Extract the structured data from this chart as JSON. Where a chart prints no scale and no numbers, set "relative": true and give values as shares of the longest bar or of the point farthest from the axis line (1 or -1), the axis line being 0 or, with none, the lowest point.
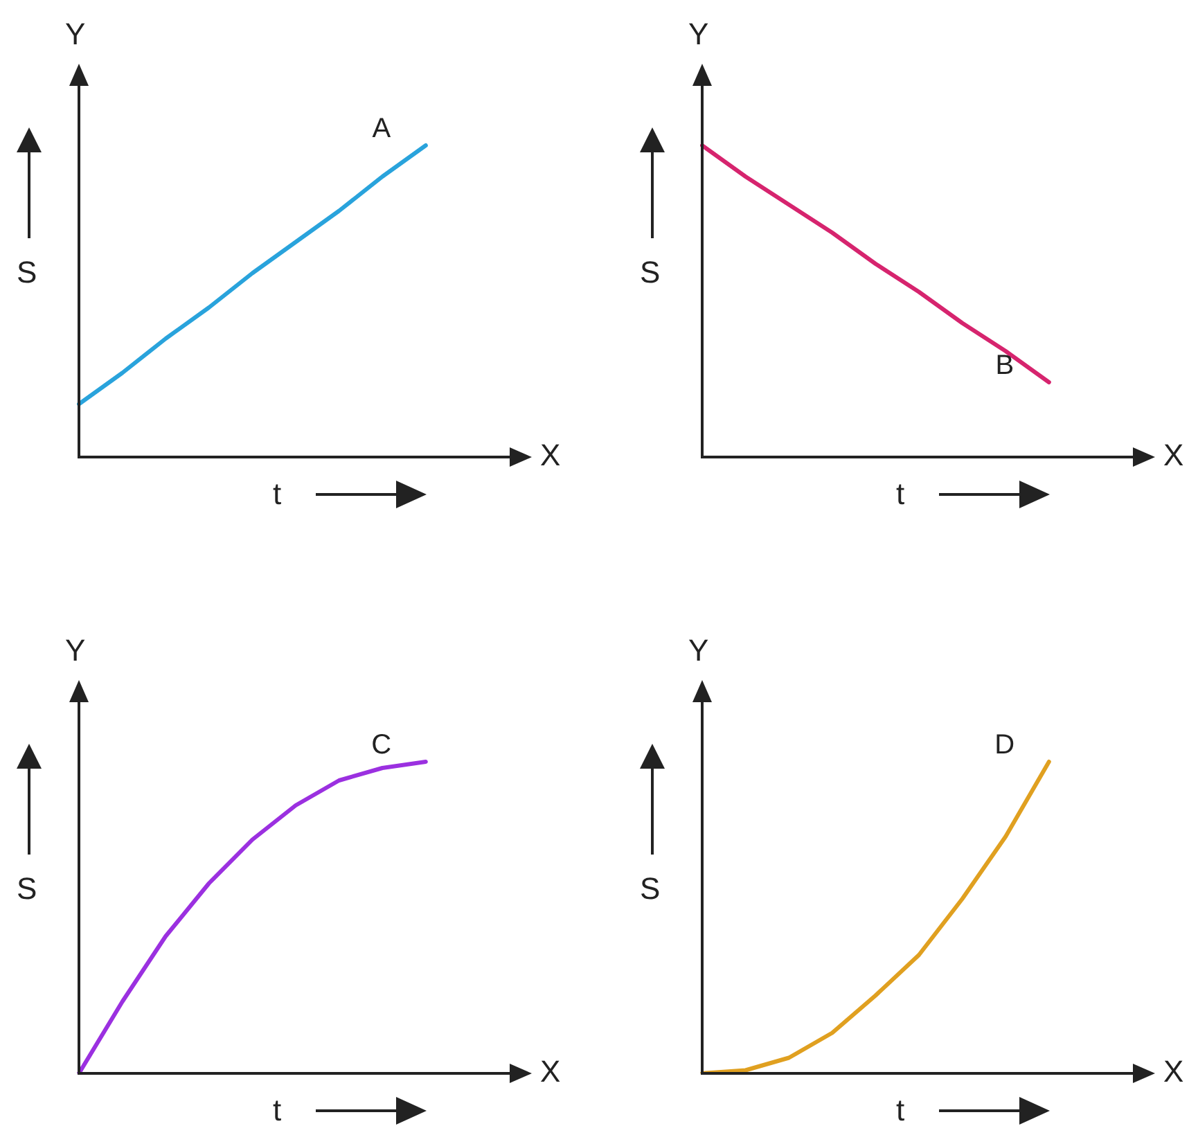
{
  "chart_data": [
    {
      "type": "line",
      "relative": true,
      "xlabel": "t",
      "ylabel": "S",
      "annotations": [
        "Y",
        "X"
      ],
      "categories": [
        null,
        null,
        null,
        null,
        null,
        null,
        null,
        null,
        null,
        null,
        null
      ],
      "series": [
        {
          "name": "A",
          "color": "#29a3dc",
          "values": [
            0.17,
            0.27,
            0.38,
            0.48,
            0.59,
            0.69,
            0.79,
            0.9,
            1,
            null,
            null
          ]
        }
      ]
    },
    {
      "type": "line",
      "relative": true,
      "xlabel": "t",
      "ylabel": "S",
      "annotations": [
        "Y",
        "X"
      ],
      "categories": [
        null,
        null,
        null,
        null,
        null,
        null,
        null,
        null,
        null,
        null,
        null
      ],
      "series": [
        {
          "name": "B",
          "color": "#d6246e",
          "values": [
            1,
            0.9,
            0.81,
            0.72,
            0.62,
            0.53,
            0.43,
            0.34,
            0.24,
            null,
            null
          ]
        }
      ]
    },
    {
      "type": "line",
      "relative": true,
      "xlabel": "t",
      "ylabel": "S",
      "annotations": [
        "Y",
        "X"
      ],
      "categories": [
        null,
        null,
        null,
        null,
        null,
        null,
        null,
        null,
        null,
        null,
        null
      ],
      "series": [
        {
          "name": "C",
          "color": "#9b30e0",
          "values": [
            0,
            0.23,
            0.44,
            0.61,
            0.75,
            0.86,
            0.94,
            0.98,
            1,
            null,
            null
          ]
        }
      ]
    },
    {
      "type": "line",
      "relative": true,
      "xlabel": "t",
      "ylabel": "S",
      "annotations": [
        "Y",
        "X"
      ],
      "categories": [
        null,
        null,
        null,
        null,
        null,
        null,
        null,
        null,
        null,
        null,
        null
      ],
      "series": [
        {
          "name": "D",
          "color": "#e0a020",
          "values": [
            0,
            0.01,
            0.05,
            0.13,
            0.25,
            0.38,
            0.56,
            0.76,
            1,
            null,
            null
          ]
        }
      ]
    }
  ]
}
